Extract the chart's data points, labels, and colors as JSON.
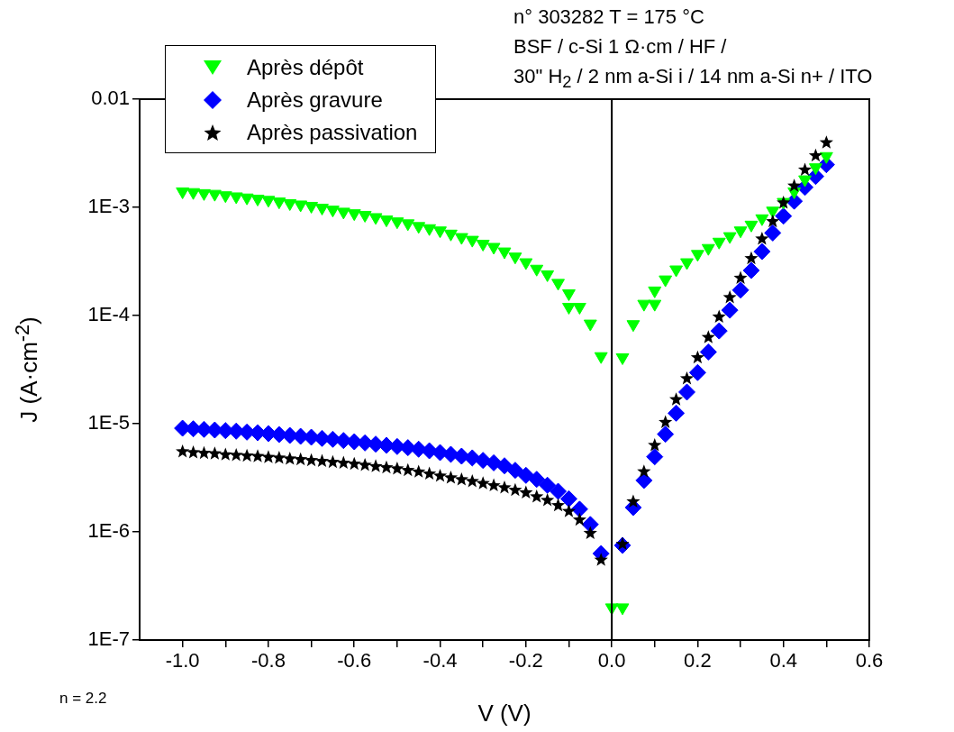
{
  "chart_data": {
    "type": "scatter",
    "xlabel": "V (V)",
    "ylabel": "J (A·cm$^{-2}$)",
    "annotations": [
      "n° 303282 T = 175 °C",
      "BSF / c-Si 1 Ω·cm / HF /",
      "30\" H$_{2}$ / 2 nm a-Si i / 14 nm a-Si n+ / ITO",
      "n = 2.2"
    ],
    "x": [
      -1,
      -0.975,
      -0.95,
      -0.925,
      -0.9,
      -0.875,
      -0.85,
      -0.825,
      -0.8,
      -0.775,
      -0.75,
      -0.725,
      -0.7,
      -0.675,
      -0.65,
      -0.625,
      -0.6,
      -0.575,
      -0.55,
      -0.525,
      -0.5,
      -0.475,
      -0.45,
      -0.425,
      -0.4,
      -0.375,
      -0.35,
      -0.325,
      -0.3,
      -0.275,
      -0.25,
      -0.225,
      -0.2,
      -0.175,
      -0.15,
      -0.125,
      -0.1,
      -0.075,
      -0.05,
      -0.025,
      0.025,
      0.05,
      0.075,
      0.1,
      0.125,
      0.15,
      0.175,
      0.2,
      0.225,
      0.25,
      0.275,
      0.3,
      0.325,
      0.35,
      0.375,
      0.4,
      0.425,
      0.45,
      0.475,
      0.5
    ],
    "series": [
      {
        "name": "Après dépôt",
        "color": "#00ff00",
        "marker": "triangle",
        "x": [
          -1,
          -0.975,
          -0.95,
          -0.925,
          -0.9,
          -0.875,
          -0.85,
          -0.825,
          -0.8,
          -0.775,
          -0.75,
          -0.725,
          -0.7,
          -0.675,
          -0.65,
          -0.625,
          -0.6,
          -0.575,
          -0.55,
          -0.525,
          -0.5,
          -0.475,
          -0.45,
          -0.425,
          -0.4,
          -0.375,
          -0.35,
          -0.325,
          -0.3,
          -0.275,
          -0.25,
          -0.225,
          -0.2,
          -0.175,
          -0.15,
          -0.125,
          -0.1,
          -0.1,
          -0.075,
          -0.05,
          -0.025,
          0,
          0.025,
          0.025,
          0.05,
          0.075,
          0.1,
          0.1,
          0.125,
          0.15,
          0.175,
          0.2,
          0.225,
          0.25,
          0.275,
          0.3,
          0.325,
          0.35,
          0.375,
          0.4,
          0.425,
          0.45,
          0.475,
          0.5
        ],
        "values": [
          0.0014,
          0.00138,
          0.00135,
          0.00133,
          0.00129,
          0.00126,
          0.00123,
          0.0012,
          0.00117,
          0.00113,
          0.00109,
          0.00106,
          0.00103,
          0.00099,
          0.00095,
          0.00091,
          0.00088,
          0.00085,
          0.00081,
          0.00077,
          0.00074,
          0.00071,
          0.00067,
          0.00064,
          0.00061,
          0.00057,
          0.00053,
          0.0005,
          0.00046,
          0.00043,
          0.00039,
          0.00035,
          0.00031,
          0.00027,
          0.00024,
          0.0002,
          0.00016,
          0.00012,
          0.00012,
          8.4e-05,
          4.2e-05,
          2e-07,
          2e-07,
          4.1e-05,
          8.3e-05,
          0.000128,
          0.000128,
          0.00017,
          0.000215,
          0.000266,
          0.00031,
          0.00037,
          0.00042,
          0.00048,
          0.00054,
          0.00061,
          0.00069,
          0.00079,
          0.00093,
          0.00112,
          0.0014,
          0.00181,
          0.00234,
          0.00297
        ]
      },
      {
        "name": "Après gravure",
        "color": "#0000ff",
        "marker": "diamond",
        "values": [
          9.08e-06,
          8.97e-06,
          8.86e-06,
          8.74e-06,
          8.63e-06,
          8.53e-06,
          8.36e-06,
          8.25e-06,
          8.1e-06,
          7.94e-06,
          7.79e-06,
          7.64e-06,
          7.5e-06,
          7.31e-06,
          7.17e-06,
          6.99e-06,
          6.81e-06,
          6.64e-06,
          6.47e-06,
          6.31e-06,
          6.15e-06,
          6e-06,
          5.81e-06,
          5.62e-06,
          5.41e-06,
          5.21e-06,
          5.01e-06,
          4.83e-06,
          4.58e-06,
          4.35e-06,
          4.08e-06,
          3.71e-06,
          3.33e-06,
          3.06e-06,
          2.7e-06,
          2.37e-06,
          2.02e-06,
          1.62e-06,
          1.17e-06,
          6.3e-07,
          7.5e-07,
          1.68e-06,
          2.99e-06,
          4.95e-06,
          8e-06,
          1.25e-05,
          1.96e-05,
          2.97e-05,
          4.6e-05,
          7.2e-05,
          0.000112,
          0.000172,
          0.000261,
          0.00039,
          0.00058,
          0.00083,
          0.00114,
          0.00153,
          0.00193,
          0.00248
        ]
      },
      {
        "name": "Après passivation",
        "color": "#000000",
        "marker": "star",
        "values": [
          5.52e-06,
          5.41e-06,
          5.34e-06,
          5.28e-06,
          5.17e-06,
          5.11e-06,
          5.04e-06,
          4.98e-06,
          4.89e-06,
          4.82e-06,
          4.73e-06,
          4.67e-06,
          4.58e-06,
          4.5e-06,
          4.41e-06,
          4.33e-06,
          4.24e-06,
          4.14e-06,
          4.03e-06,
          3.93e-06,
          3.83e-06,
          3.71e-06,
          3.59e-06,
          3.44e-06,
          3.29e-06,
          3.16e-06,
          3.04e-06,
          2.93e-06,
          2.8e-06,
          2.68e-06,
          2.56e-06,
          2.43e-06,
          2.3e-06,
          2.11e-06,
          1.96e-06,
          1.75e-06,
          1.55e-06,
          1.29e-06,
          9.7e-07,
          5.5e-07,
          7.7e-07,
          1.9e-06,
          3.6e-06,
          6.3e-06,
          1.03e-05,
          1.67e-05,
          2.61e-05,
          4.08e-05,
          6.27e-05,
          9.7e-05,
          0.000147,
          0.000222,
          0.000337,
          0.00051,
          0.00074,
          0.0011,
          0.00158,
          0.00222,
          0.003,
          0.00396
        ]
      }
    ],
    "log": "y",
    "xlim": [
      -1.1,
      0.6
    ],
    "ylim": [
      1e-07,
      0.01
    ],
    "xticks": [
      {
        "value": -1.0,
        "label": "-1.0"
      },
      {
        "value": -0.9,
        "label": null
      },
      {
        "value": -0.8,
        "label": "-0.8"
      },
      {
        "value": -0.7,
        "label": null
      },
      {
        "value": -0.6,
        "label": "-0.6"
      },
      {
        "value": -0.5,
        "label": null
      },
      {
        "value": -0.4,
        "label": "-0.4"
      },
      {
        "value": -0.3,
        "label": null
      },
      {
        "value": -0.2,
        "label": "-0.2"
      },
      {
        "value": -0.1,
        "label": null
      },
      {
        "value": 0,
        "label": "0.0"
      },
      {
        "value": 0.1,
        "label": null
      },
      {
        "value": 0.2,
        "label": "0.2"
      },
      {
        "value": 0.3,
        "label": null
      },
      {
        "value": 0.4,
        "label": "0.4"
      },
      {
        "value": 0.5,
        "label": null
      },
      {
        "value": 0.6,
        "label": "0.6"
      }
    ],
    "yticks": [
      {
        "value": 1e-07,
        "label": "1E-7"
      },
      {
        "value": 1e-06,
        "label": "1E-6"
      },
      {
        "value": 1e-05,
        "label": "1E-5"
      },
      {
        "value": 0.0001,
        "label": "1E-4"
      },
      {
        "value": 0.001,
        "label": "1E-3"
      },
      0.01
    ],
    "ref_lines": [
      {
        "axis": "x",
        "value": 0
      }
    ],
    "grid": false,
    "legend": "top left"
  }
}
